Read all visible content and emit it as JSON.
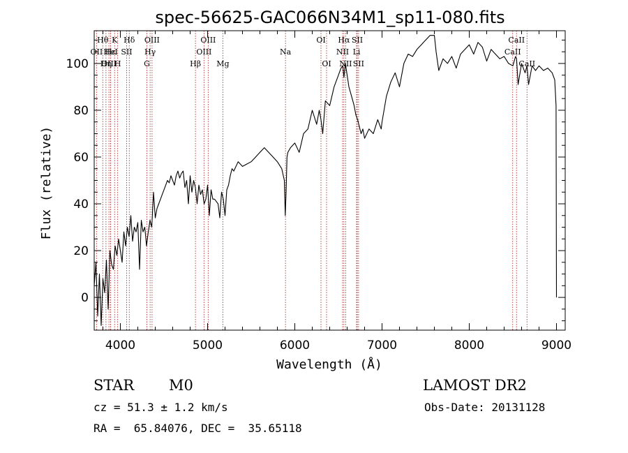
{
  "chart_data": {
    "type": "line",
    "title": "spec-56625-GAC066N34M1_sp11-080.fits",
    "xlabel": "Wavelength (Å)",
    "ylabel": "Flux (relative)",
    "xlim": [
      3700,
      9100
    ],
    "ylim": [
      -14,
      114
    ],
    "xticks": [
      4000,
      5000,
      6000,
      7000,
      8000,
      9000
    ],
    "yticks": [
      0,
      20,
      40,
      60,
      80,
      100
    ],
    "line_color": "#000000",
    "marker_color": "#b03030",
    "spectrum": {
      "x": [
        3700,
        3720,
        3740,
        3760,
        3780,
        3800,
        3820,
        3840,
        3860,
        3880,
        3900,
        3920,
        3940,
        3960,
        3980,
        4000,
        4020,
        4040,
        4060,
        4080,
        4100,
        4120,
        4140,
        4160,
        4180,
        4200,
        4220,
        4240,
        4260,
        4280,
        4300,
        4320,
        4340,
        4360,
        4380,
        4400,
        4420,
        4440,
        4460,
        4480,
        4500,
        4520,
        4540,
        4560,
        4580,
        4600,
        4620,
        4640,
        4660,
        4680,
        4700,
        4720,
        4740,
        4760,
        4780,
        4800,
        4820,
        4840,
        4860,
        4880,
        4900,
        4920,
        4940,
        4960,
        4980,
        5000,
        5020,
        5040,
        5060,
        5080,
        5100,
        5120,
        5140,
        5160,
        5180,
        5200,
        5220,
        5240,
        5260,
        5280,
        5300,
        5350,
        5400,
        5450,
        5500,
        5550,
        5600,
        5650,
        5700,
        5750,
        5800,
        5850,
        5880,
        5890,
        5900,
        5910,
        5920,
        5950,
        6000,
        6050,
        6100,
        6150,
        6200,
        6250,
        6280,
        6300,
        6320,
        6350,
        6400,
        6450,
        6500,
        6530,
        6550,
        6563,
        6580,
        6600,
        6620,
        6650,
        6680,
        6700,
        6720,
        6740,
        6760,
        6780,
        6800,
        6850,
        6900,
        6950,
        6990,
        7000,
        7050,
        7100,
        7150,
        7200,
        7250,
        7300,
        7350,
        7400,
        7450,
        7500,
        7550,
        7600,
        7620,
        7650,
        7700,
        7750,
        7800,
        7850,
        7900,
        7950,
        8000,
        8050,
        8100,
        8150,
        8200,
        8250,
        8300,
        8350,
        8400,
        8450,
        8500,
        8530,
        8542,
        8560,
        8600,
        8640,
        8662,
        8680,
        8720,
        8760,
        8800,
        8850,
        8900,
        8950,
        8980,
        8995,
        9000
      ],
      "y": [
        5,
        15,
        -8,
        10,
        -12,
        8,
        2,
        16,
        -5,
        20,
        14,
        12,
        22,
        18,
        25,
        20,
        15,
        28,
        22,
        30,
        26,
        35,
        24,
        30,
        28,
        32,
        12,
        33,
        28,
        30,
        22,
        28,
        33,
        30,
        45,
        34,
        38,
        40,
        42,
        44,
        46,
        48,
        50,
        49,
        52,
        50,
        48,
        52,
        54,
        51,
        53,
        54,
        47,
        50,
        40,
        52,
        45,
        50,
        47,
        40,
        48,
        44,
        46,
        40,
        42,
        48,
        35,
        46,
        42,
        42,
        41,
        40,
        34,
        45,
        42,
        35,
        46,
        48,
        52,
        55,
        54,
        58,
        56,
        57,
        58,
        60,
        62,
        64,
        62,
        60,
        58,
        55,
        50,
        35,
        45,
        60,
        62,
        64,
        66,
        62,
        70,
        72,
        80,
        74,
        80,
        76,
        70,
        84,
        82,
        90,
        95,
        98,
        99,
        94,
        100,
        95,
        90,
        86,
        82,
        78,
        76,
        73,
        70,
        72,
        68,
        72,
        70,
        76,
        72,
        75,
        86,
        92,
        96,
        90,
        100,
        104,
        103,
        106,
        108,
        110,
        112,
        112,
        105,
        97,
        102,
        100,
        103,
        98,
        104,
        106,
        108,
        104,
        109,
        107,
        101,
        106,
        104,
        102,
        103,
        100,
        99,
        103,
        102,
        91,
        100,
        96,
        99,
        91,
        99,
        97,
        99,
        97,
        98,
        96,
        93,
        82,
        0
      ]
    },
    "lines": [
      {
        "label": "Hθ",
        "x": 3798,
        "row": 0
      },
      {
        "label": "OII",
        "x": 3727,
        "row": 1
      },
      {
        "label": "OIII",
        "x": 3869,
        "row": 2
      },
      {
        "label": "Hε",
        "x": 3888,
        "row": 1
      },
      {
        "label": "K",
        "x": 3934,
        "row": 0
      },
      {
        "label": "Hη",
        "x": 3835,
        "row": 2
      },
      {
        "label": "H",
        "x": 3969,
        "row": 2
      },
      {
        "label": "HeI",
        "x": 3889,
        "row": 1
      },
      {
        "label": "SII",
        "x": 4072,
        "row": 1
      },
      {
        "label": "Hδ",
        "x": 4102,
        "row": 0
      },
      {
        "label": "OIII",
        "x": 4363,
        "row": 0
      },
      {
        "label": "Hγ",
        "x": 4341,
        "row": 1
      },
      {
        "label": "G",
        "x": 4304,
        "row": 2
      },
      {
        "label": "Hβ",
        "x": 4861,
        "row": 2
      },
      {
        "label": "OIII",
        "x": 5007,
        "row": 0
      },
      {
        "label": "OIII",
        "x": 4959,
        "row": 1
      },
      {
        "label": "Mg",
        "x": 5175,
        "row": 2
      },
      {
        "label": "Na",
        "x": 5893,
        "row": 1
      },
      {
        "label": "OI",
        "x": 6300,
        "row": 0
      },
      {
        "label": "OI",
        "x": 6364,
        "row": 2
      },
      {
        "label": "Hα",
        "x": 6563,
        "row": 0
      },
      {
        "label": "NII",
        "x": 6548,
        "row": 1
      },
      {
        "label": "NII",
        "x": 6583,
        "row": 2
      },
      {
        "label": "SII",
        "x": 6716,
        "row": 0
      },
      {
        "label": "Li",
        "x": 6708,
        "row": 1
      },
      {
        "label": "SII",
        "x": 6731,
        "row": 2
      },
      {
        "label": "CaII",
        "x": 8542,
        "row": 0
      },
      {
        "label": "CaII",
        "x": 8498,
        "row": 1
      },
      {
        "label": "CaII",
        "x": 8662,
        "row": 2
      }
    ]
  },
  "info": {
    "object_type": "STAR",
    "subclass": "M0",
    "survey": "LAMOST DR2",
    "cz": "cz = 51.3 ± 1.2 km/s",
    "obs_date": "Obs-Date: 20131128",
    "coords": "RA =  65.84076, DEC =  35.65118"
  }
}
